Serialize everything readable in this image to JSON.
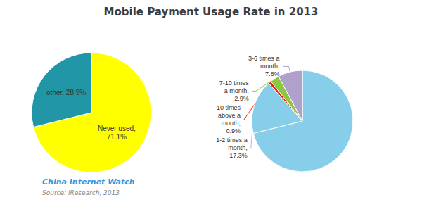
{
  "chart_data": [
    {
      "type": "pie",
      "title": "Mobile Payment Usage Rate in 2013",
      "categories": [
        "Never used",
        "other"
      ],
      "values": [
        71.1,
        28.9
      ],
      "colors": [
        "#FFFF00",
        "#2196A6"
      ],
      "data_labels": true,
      "value_labels": [
        "Never used,\n71.1%",
        "other, 28.9%"
      ],
      "annotations": [
        "China Internet Watch",
        "Source: iResearch, 2013"
      ]
    },
    {
      "type": "pie",
      "categories": [
        null,
        "1-2 times a month",
        "10 times above a month",
        "7-10 times a month",
        "3-6 times a month"
      ],
      "values": [
        71.1,
        17.3,
        0.9,
        2.9,
        7.8
      ],
      "colors": [
        "#87CEEB",
        "#87CEEB",
        "#EE2200",
        "#8DC63F",
        "#B0A0CC"
      ],
      "data_labels": true,
      "value_labels": [
        null,
        "1-2 times a\nmonth,\n17.3%",
        "10 times\nabove a\nmonth,\n0.9%",
        "7-10 times\na month,\n2.9%",
        "3-6 times a\nmonth,\n7.8%"
      ]
    }
  ]
}
